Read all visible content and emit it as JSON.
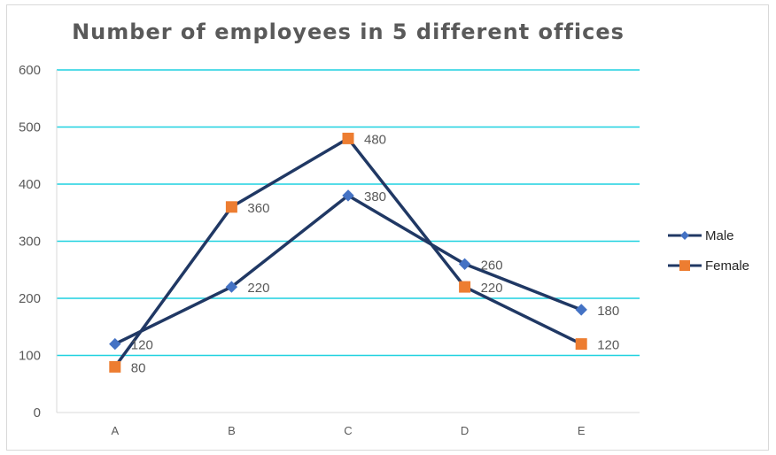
{
  "chart_data": {
    "type": "line",
    "title": "Number of employees in 5 different offices",
    "xlabel": "",
    "ylabel": "",
    "categories": [
      "A",
      "B",
      "C",
      "D",
      "E"
    ],
    "ylim": [
      0,
      600
    ],
    "yticks": [
      0,
      100,
      200,
      300,
      400,
      500,
      600
    ],
    "grid": true,
    "legend_position": "right",
    "series": [
      {
        "name": "Male",
        "values": [
          120,
          220,
          380,
          260,
          180
        ],
        "marker": "diamond",
        "marker_color": "#4472C4",
        "line_color": "#203864"
      },
      {
        "name": "Female",
        "values": [
          80,
          360,
          480,
          220,
          120
        ],
        "marker": "square",
        "marker_color": "#ED7D31",
        "line_color": "#203864"
      }
    ],
    "grid_color": "#1FD1E0"
  }
}
